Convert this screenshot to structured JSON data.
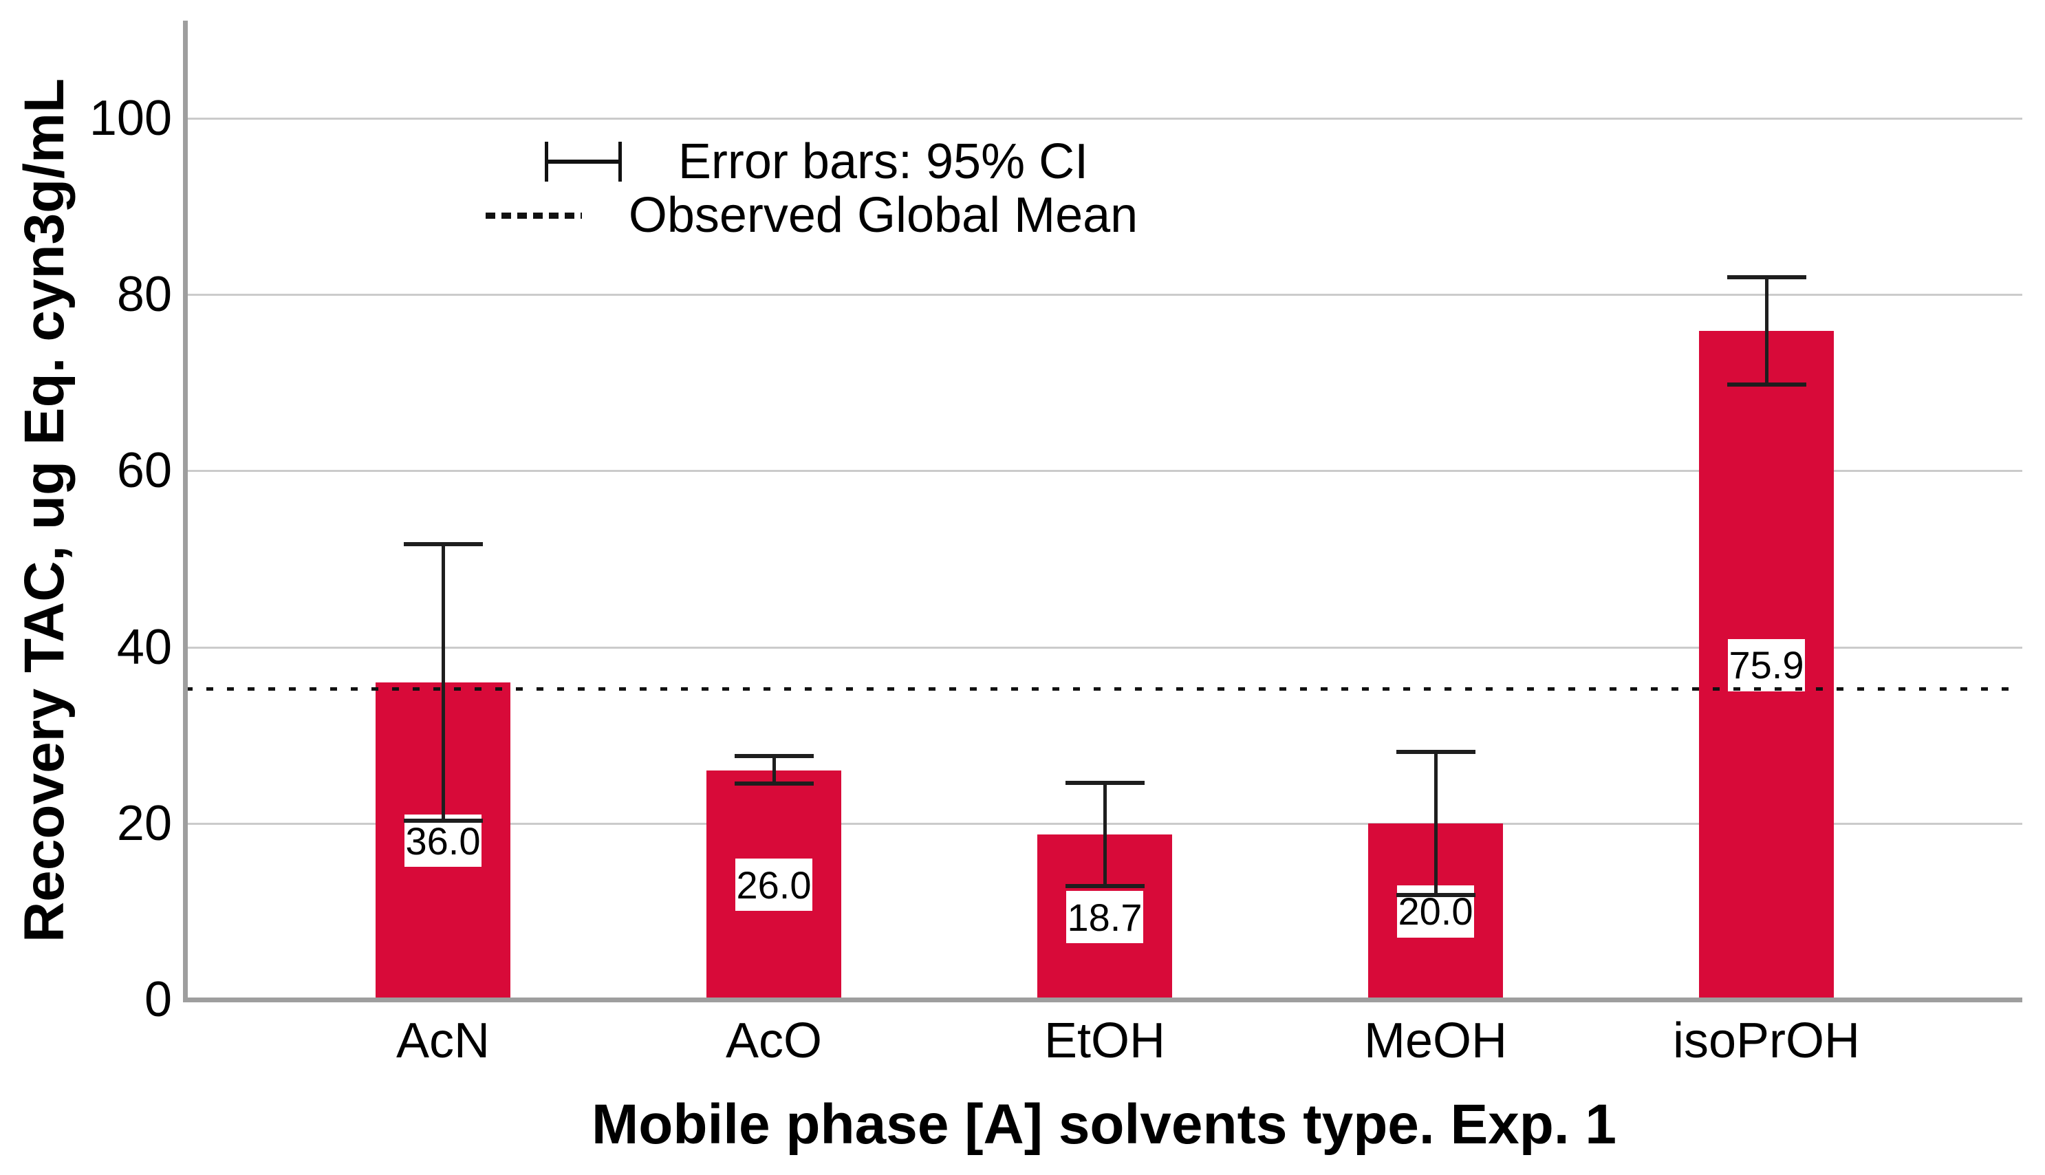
{
  "chart_data": {
    "type": "bar",
    "title": "",
    "xlabel": "Mobile phase [A] solvents type. Exp. 1",
    "ylabel": "Recovery TAC, ug Eq. cyn3g/mL",
    "categories": [
      "AcN",
      "AcO",
      "EtOH",
      "MeOH",
      "isoPrOH"
    ],
    "values": [
      36.0,
      26.0,
      18.7,
      20.0,
      75.9
    ],
    "bar_labels": [
      "36.0",
      "26.0",
      "18.7",
      "20.0",
      "75.9"
    ],
    "ci_lower": [
      20.3,
      24.5,
      12.9,
      11.9,
      69.8
    ],
    "ci_upper": [
      51.7,
      27.6,
      24.6,
      28.1,
      82.0
    ],
    "observed_global_mean": 35.3,
    "yticks": [
      0,
      20,
      40,
      60,
      80,
      100
    ],
    "ylim": [
      0,
      111
    ],
    "grid": true,
    "legend_position": "top-center",
    "legend": [
      {
        "symbol": "error-bar",
        "label": "Error bars: 95% CI"
      },
      {
        "symbol": "dashed-line",
        "label": "Observed Global Mean"
      }
    ],
    "colors": {
      "bar": "#D80A39",
      "gridline": "#CBCBCB",
      "axis": "#9E9E9E",
      "error_bar": "#1E1E1E",
      "mean_line": "#111111",
      "label_box_bg": "#FFFFFF",
      "text": "#000000"
    }
  }
}
